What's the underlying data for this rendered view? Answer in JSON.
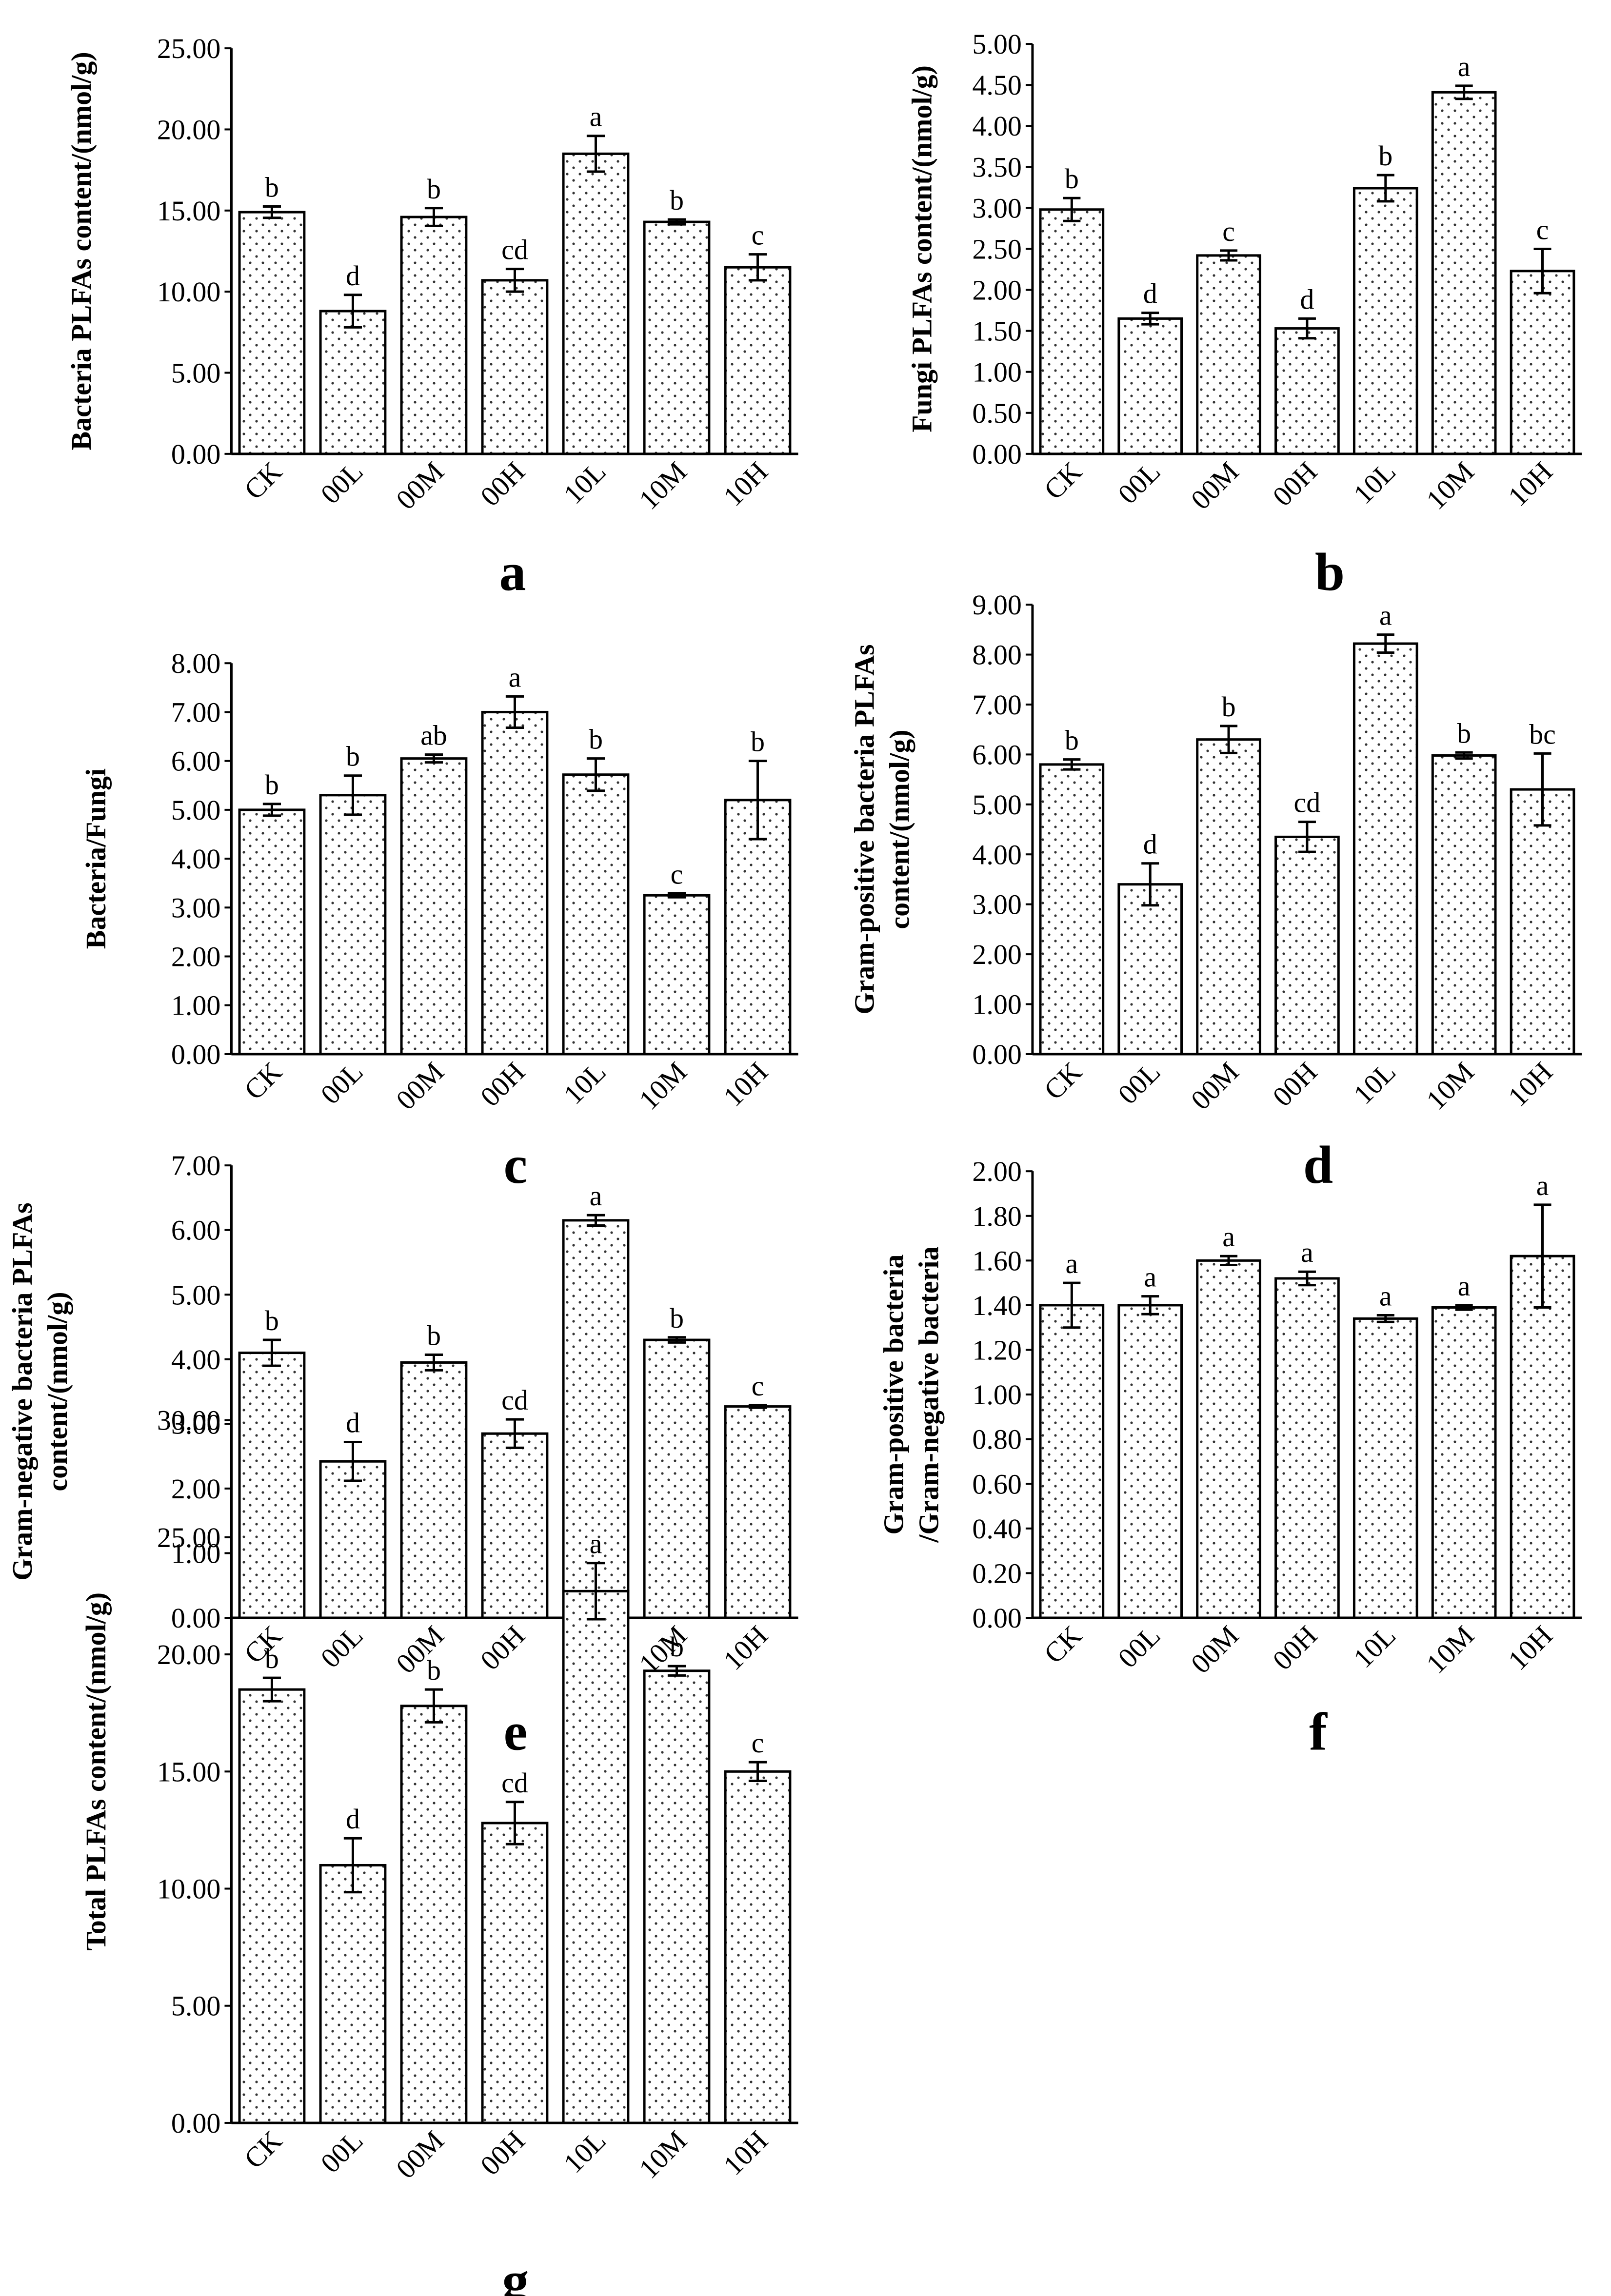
{
  "chart_data": [
    {
      "panel": "a",
      "type": "bar",
      "ylabel": [
        "Bacteria PLFAs content/(nmol/g)"
      ],
      "categories": [
        "CK",
        "00L",
        "00M",
        "00H",
        "10L",
        "10M",
        "10H"
      ],
      "values": [
        14.9,
        8.8,
        14.6,
        10.7,
        18.5,
        14.3,
        11.5
      ],
      "errors": [
        0.35,
        1.0,
        0.55,
        0.7,
        1.1,
        0.15,
        0.8
      ],
      "significance": [
        "b",
        "d",
        "b",
        "cd",
        "a",
        "b",
        "c"
      ],
      "ylim": [
        0,
        25
      ],
      "ticks": [
        "0.00",
        "5.00",
        "10.00",
        "15.00",
        "20.00",
        "25.00"
      ]
    },
    {
      "panel": "b",
      "type": "bar",
      "ylabel": [
        "Fungi PLFAs content/(nmol/g)"
      ],
      "categories": [
        "CK",
        "00L",
        "00M",
        "00H",
        "10L",
        "10M",
        "10H"
      ],
      "values": [
        2.98,
        1.65,
        2.42,
        1.53,
        3.24,
        4.41,
        2.23
      ],
      "errors": [
        0.14,
        0.07,
        0.06,
        0.12,
        0.16,
        0.08,
        0.27
      ],
      "significance": [
        "b",
        "d",
        "c",
        "d",
        "b",
        "a",
        "c"
      ],
      "ylim": [
        0,
        5
      ],
      "ticks": [
        "0.00",
        "0.50",
        "1.00",
        "1.50",
        "2.00",
        "2.50",
        "3.00",
        "3.50",
        "4.00",
        "4.50",
        "5.00"
      ]
    },
    {
      "panel": "c",
      "type": "bar",
      "ylabel": [
        "Bacteria/Fungi"
      ],
      "categories": [
        "CK",
        "00L",
        "00M",
        "00H",
        "10L",
        "10M",
        "10H"
      ],
      "values": [
        5.0,
        5.3,
        6.05,
        7.0,
        5.72,
        3.25,
        5.2
      ],
      "errors": [
        0.12,
        0.4,
        0.08,
        0.32,
        0.33,
        0.04,
        0.8
      ],
      "significance": [
        "b",
        "b",
        "ab",
        "a",
        "b",
        "c",
        "b"
      ],
      "ylim": [
        0,
        8
      ],
      "ticks": [
        "0.00",
        "1.00",
        "2.00",
        "3.00",
        "4.00",
        "5.00",
        "6.00",
        "7.00",
        "8.00"
      ]
    },
    {
      "panel": "d",
      "type": "bar",
      "ylabel": [
        "Gram-positive bacteria PLFAs",
        "content/(nmol/g)"
      ],
      "categories": [
        "CK",
        "00L",
        "00M",
        "00H",
        "10L",
        "10M",
        "10H"
      ],
      "values": [
        5.8,
        3.4,
        6.3,
        4.35,
        8.22,
        5.98,
        5.3
      ],
      "errors": [
        0.1,
        0.42,
        0.27,
        0.3,
        0.18,
        0.06,
        0.72
      ],
      "significance": [
        "b",
        "d",
        "b",
        "cd",
        "a",
        "b",
        "bc"
      ],
      "ylim": [
        0,
        9
      ],
      "ticks": [
        "0.00",
        "1.00",
        "2.00",
        "3.00",
        "4.00",
        "5.00",
        "6.00",
        "7.00",
        "8.00",
        "9.00"
      ]
    },
    {
      "panel": "e",
      "type": "bar",
      "ylabel": [
        "Gram-negative bacteria PLFAs",
        "content/(nmol/g)"
      ],
      "categories": [
        "CK",
        "00L",
        "00M",
        "00H",
        "10L",
        "10M",
        "10H"
      ],
      "values": [
        4.1,
        2.42,
        3.95,
        2.85,
        6.15,
        4.3,
        3.27
      ],
      "errors": [
        0.2,
        0.3,
        0.12,
        0.22,
        0.08,
        0.04,
        0.02
      ],
      "significance": [
        "b",
        "d",
        "b",
        "cd",
        "a",
        "b",
        "c"
      ],
      "ylim": [
        0,
        7
      ],
      "ticks": [
        "0.00",
        "1.00",
        "2.00",
        "3.00",
        "4.00",
        "5.00",
        "6.00",
        "7.00"
      ]
    },
    {
      "panel": "f",
      "type": "bar",
      "ylabel": [
        "Gram-positive bacteria",
        "/Gram-negative bacteria"
      ],
      "categories": [
        "CK",
        "00L",
        "00M",
        "00H",
        "10L",
        "10M",
        "10H"
      ],
      "values": [
        1.4,
        1.4,
        1.6,
        1.52,
        1.34,
        1.39,
        1.62
      ],
      "errors": [
        0.1,
        0.04,
        0.02,
        0.03,
        0.015,
        0.01,
        0.23
      ],
      "significance": [
        "a",
        "a",
        "a",
        "a",
        "a",
        "a",
        "a"
      ],
      "ylim": [
        0,
        2
      ],
      "ticks": [
        "0.00",
        "0.20",
        "0.40",
        "0.60",
        "0.80",
        "1.00",
        "1.20",
        "1.40",
        "1.60",
        "1.80",
        "2.00"
      ]
    },
    {
      "panel": "g",
      "type": "bar",
      "ylabel": [
        "Total PLFAs content/(nmol/g)"
      ],
      "categories": [
        "CK",
        "00L",
        "00M",
        "00H",
        "10L",
        "10M",
        "10H"
      ],
      "values": [
        18.5,
        11.0,
        17.8,
        12.8,
        22.7,
        19.3,
        15.0
      ],
      "errors": [
        0.5,
        1.15,
        0.7,
        0.9,
        1.2,
        0.2,
        0.4
      ],
      "significance": [
        "b",
        "d",
        "b",
        "cd",
        "a",
        "b",
        "c"
      ],
      "ylim": [
        0,
        30
      ],
      "ticks": [
        "0.00",
        "5.00",
        "10.00",
        "15.00",
        "20.00",
        "25.00",
        "30.00"
      ]
    }
  ]
}
